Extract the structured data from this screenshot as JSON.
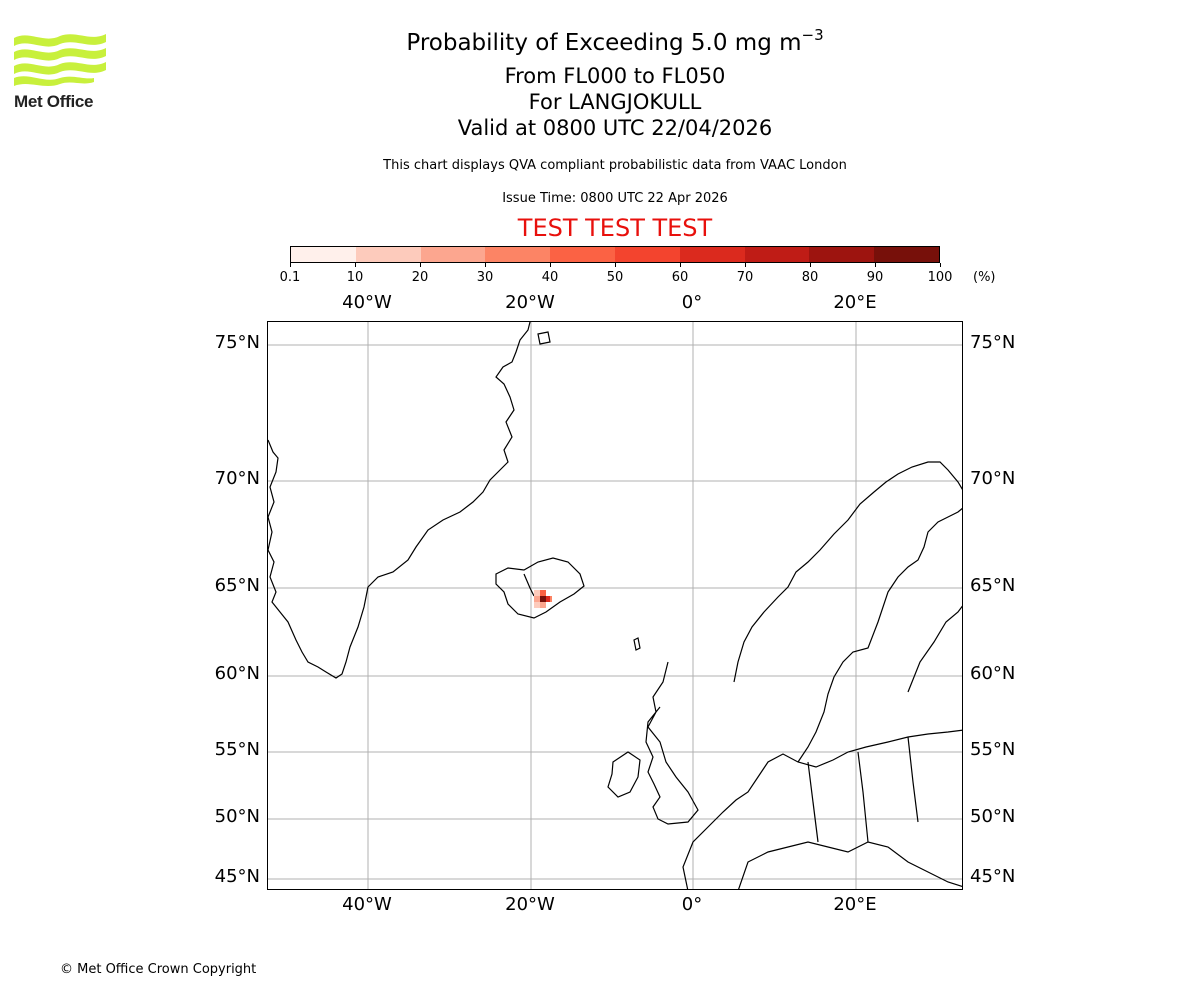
{
  "logo": {
    "text": "Met Office",
    "color": "#c8f03c"
  },
  "titles": {
    "main_prefix": "Probability of Exceeding 5.0 mg m",
    "main_exponent": "−3",
    "levels": "From FL000 to FL050",
    "volcano": "For LANGJOKULL",
    "valid": "Valid at 0800 UTC 22/04/2026"
  },
  "subtitles": {
    "description": "This chart displays QVA compliant probabilistic data from VAAC London",
    "issue_time": "Issue Time: 0800 UTC 22 Apr 2026",
    "test_banner": "TEST TEST TEST",
    "test_color": "#e8100c"
  },
  "colorbar": {
    "unit": "(%)",
    "ticks": [
      "0.1",
      "10",
      "20",
      "30",
      "40",
      "50",
      "60",
      "70",
      "80",
      "90",
      "100"
    ],
    "colors": [
      "#fff0eb",
      "#fdcbbc",
      "#fca68f",
      "#fc8465",
      "#fb6244",
      "#f3442e",
      "#db2a1e",
      "#bf1c16",
      "#9d140f",
      "#77100a"
    ]
  },
  "map": {
    "lon_ticks_top": [
      "40°W",
      "20°W",
      "0°",
      "20°E"
    ],
    "lon_ticks_bottom": [
      "40°W",
      "20°W",
      "0°",
      "20°E"
    ],
    "lat_ticks_left": [
      "75°N",
      "70°N",
      "65°N",
      "60°N",
      "55°N",
      "50°N",
      "45°N"
    ],
    "lat_ticks_right": [
      "75°N",
      "70°N",
      "65°N",
      "60°N",
      "55°N",
      "50°N",
      "45°N"
    ],
    "gridline_color": "#b0b0b0",
    "plume_location": "Iceland (Langjokull)"
  },
  "footer": {
    "copyright": "© Met Office Crown Copyright"
  }
}
